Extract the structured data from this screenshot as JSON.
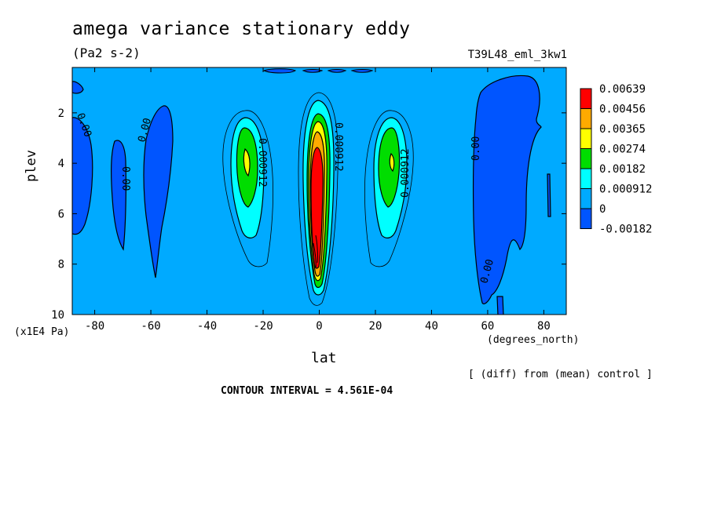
{
  "chart_data": {
    "type": "heatmap",
    "title": "amega variance stationary eddy",
    "units": "(Pa2 s-2)",
    "run_label": "T39L48_eml_3kw1",
    "xlabel": "lat",
    "xunit": "(degrees_north)",
    "ylabel": "plev",
    "yunit": "(x1E4 Pa)",
    "xlim": [
      -88,
      88
    ],
    "ylim": [
      10,
      0.2
    ],
    "xticks": [
      -80,
      -60,
      -40,
      -20,
      0,
      20,
      40,
      60,
      80
    ],
    "yticks": [
      2,
      4,
      6,
      8,
      10
    ],
    "color_levels": [
      "-0.00182",
      "0",
      "0.000912",
      "0.00182",
      "0.00274",
      "0.00365",
      "0.00456",
      "0.00639"
    ],
    "legend_placement": "right",
    "contour_labels": [
      "0.00",
      "0.00",
      "0.00",
      "0.000912",
      "0.000912",
      "0.000912",
      "0.00",
      "0.00"
    ],
    "note": "[ (diff) from (mean) control ]",
    "contour_interval": "CONTOUR INTERVAL = 4.561E-04",
    "features": [
      {
        "name": "equatorial maximum",
        "lat": 0,
        "plev": 6,
        "value": 0.00639
      },
      {
        "name": "southern subtropical maximum",
        "lat": -26,
        "plev": 4,
        "value": 0.00274
      },
      {
        "name": "northern subtropical maximum",
        "lat": 26,
        "plev": 4,
        "value": 0.00274
      }
    ]
  }
}
